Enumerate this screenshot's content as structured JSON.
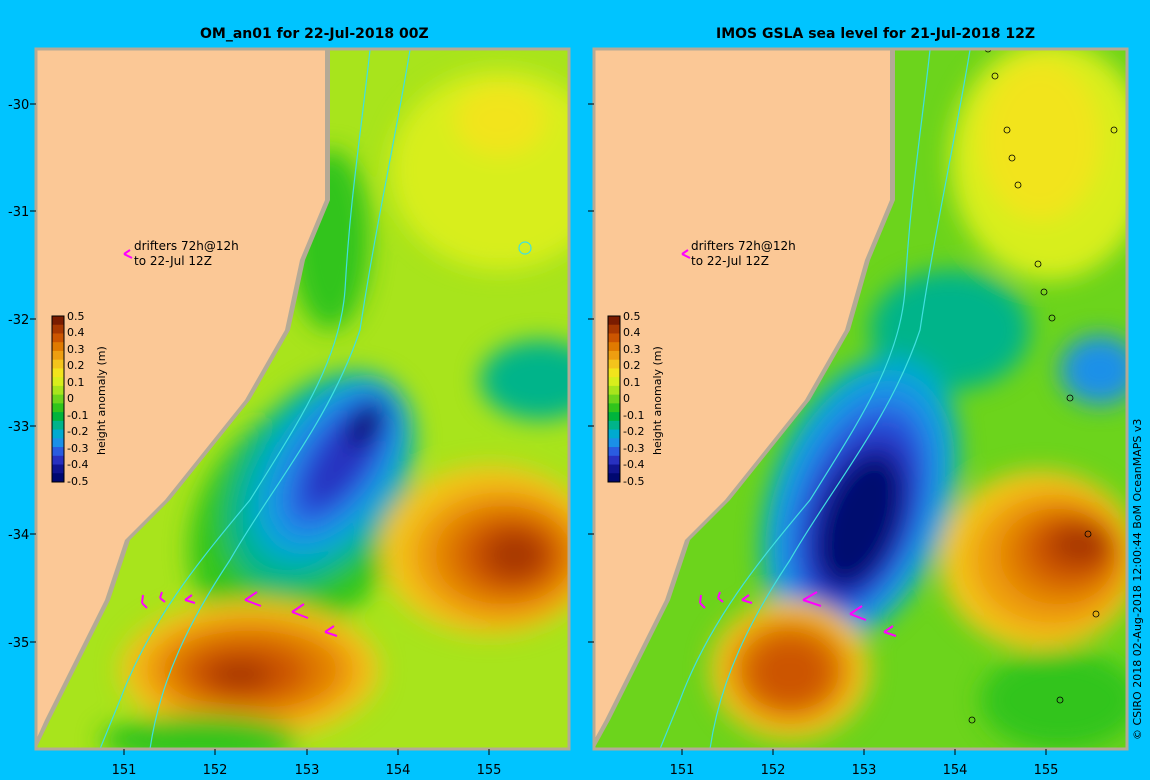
{
  "panels": [
    {
      "title": "OM_an01 for 22-Jul-2018 00Z",
      "drifter_note_line1": "drifters 72h@12h",
      "drifter_note_line2": "to 22-Jul 12Z",
      "colorbar_label": "height anomaly (m)"
    },
    {
      "title": "IMOS GSLA sea level  for 21-Jul-2018 12Z",
      "drifter_note_line1": "drifters 72h@12h",
      "drifter_note_line2": "to 22-Jul 12Z",
      "colorbar_label": "height anomaly (m)"
    }
  ],
  "axes": {
    "lat_ticks": [
      "-30",
      "-31",
      "-32",
      "-33",
      "-34",
      "-35"
    ],
    "lon_ticks": [
      "151",
      "152",
      "153",
      "154",
      "155"
    ]
  },
  "colorbar": {
    "ticks": [
      "0.5",
      "0.4",
      "0.3",
      "0.2",
      "0.1",
      "0",
      "-0.1",
      "-0.2",
      "-0.3",
      "-0.4",
      "-0.5"
    ],
    "colors": [
      "#7a1c00",
      "#a83800",
      "#cc5500",
      "#e07a00",
      "#ee9e10",
      "#f3c41c",
      "#f2e41c",
      "#d8ee1c",
      "#a8e41c",
      "#6cd41c",
      "#30c41c",
      "#00b43c",
      "#00b48a",
      "#00aad0",
      "#1a90e8",
      "#2a5ce0",
      "#2830c0",
      "#101490",
      "#000870"
    ]
  },
  "colors": {
    "background": "#00c4ff",
    "land": "#fbc896",
    "coast_shelf": "#b4aa96",
    "bathymetry": "#40e0e0",
    "drifter": "#ff00ff"
  },
  "credit": "© CSIRO 2018  02-Aug-2018 12:00:44 BoM OceanMAPS v3"
}
